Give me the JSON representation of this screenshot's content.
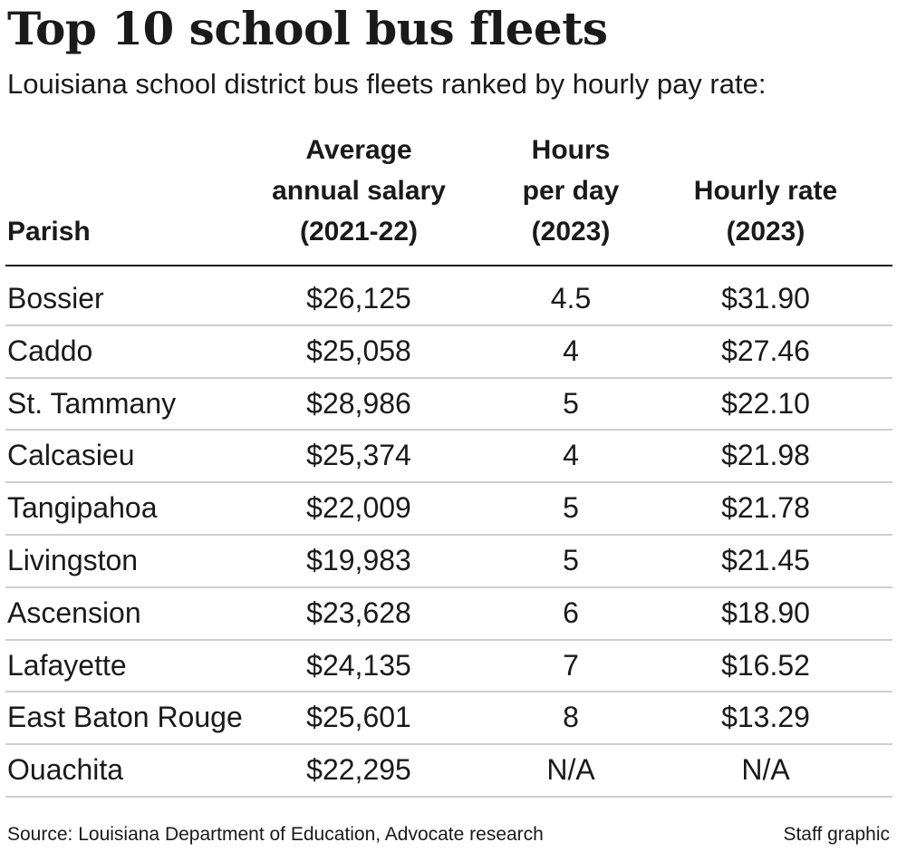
{
  "chart_data": {
    "type": "table",
    "title": "Top 10 school bus fleets",
    "subtitle": "Louisiana school district bus fleets ranked by hourly pay rate:",
    "columns": [
      {
        "lines": [
          "Parish"
        ]
      },
      {
        "lines": [
          "Average",
          "annual salary",
          "(2021-22)"
        ]
      },
      {
        "lines": [
          "Hours",
          "per day",
          "(2023)"
        ]
      },
      {
        "lines": [
          "Hourly rate",
          "(2023)"
        ]
      }
    ],
    "rows": [
      {
        "parish": "Bossier",
        "salary": "$26,125",
        "hours": "4.5",
        "rate": "$31.90"
      },
      {
        "parish": "Caddo",
        "salary": "$25,058",
        "hours": "4",
        "rate": "$27.46"
      },
      {
        "parish": "St. Tammany",
        "salary": "$28,986",
        "hours": "5",
        "rate": "$22.10"
      },
      {
        "parish": "Calcasieu",
        "salary": "$25,374",
        "hours": "4",
        "rate": "$21.98"
      },
      {
        "parish": "Tangipahoa",
        "salary": "$22,009",
        "hours": "5",
        "rate": "$21.78"
      },
      {
        "parish": "Livingston",
        "salary": "$19,983",
        "hours": "5",
        "rate": "$21.45"
      },
      {
        "parish": "Ascension",
        "salary": "$23,628",
        "hours": "6",
        "rate": "$18.90"
      },
      {
        "parish": "Lafayette",
        "salary": "$24,135",
        "hours": "7",
        "rate": "$16.52"
      },
      {
        "parish": "East Baton Rouge",
        "salary": "$25,601",
        "hours": "8",
        "rate": "$13.29"
      },
      {
        "parish": "Ouachita",
        "salary": "$22,295",
        "hours": "N/A",
        "rate": "N/A"
      }
    ],
    "source": "Source: Louisiana Department of Education, Advocate research",
    "credit": "Staff graphic"
  }
}
